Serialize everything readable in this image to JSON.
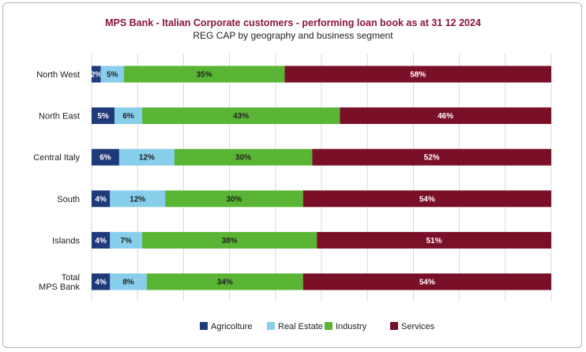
{
  "chart_data": {
    "type": "bar",
    "orientation": "horizontal",
    "stacked": true,
    "title": "MPS Bank - Italian Corporate customers - performing loan book as at 31 12 2024",
    "subtitle": "REG CAP by geography and business segment",
    "categories": [
      [
        "North West"
      ],
      [
        "North East"
      ],
      [
        "Central Italy"
      ],
      [
        "South"
      ],
      [
        "Islands"
      ],
      [
        "Total",
        "MPS Bank"
      ]
    ],
    "xlim": [
      0,
      100
    ],
    "grid": true,
    "legend_position": "bottom",
    "series": [
      {
        "name": "Agricolture",
        "color": "#1f3a7a",
        "label_color": "#ffffff",
        "values": [
          2,
          5,
          6,
          4,
          4,
          4
        ],
        "labels": [
          "2%",
          "5%",
          "6%",
          "4%",
          "4%",
          "4%"
        ]
      },
      {
        "name": "Real Estate",
        "color": "#87ceeb",
        "label_color": "#222222",
        "values": [
          5,
          6,
          12,
          12,
          7,
          8
        ],
        "labels": [
          "5%",
          "6%",
          "12%",
          "12%",
          "7%",
          "8%"
        ]
      },
      {
        "name": "Industry",
        "color": "#5ab534",
        "label_color": "#222222",
        "values": [
          35,
          43,
          30,
          30,
          38,
          34
        ],
        "labels": [
          "35%",
          "43%",
          "30%",
          "30%",
          "38%",
          "34%"
        ]
      },
      {
        "name": "Services",
        "color": "#7a0f28",
        "label_color": "#ffffff",
        "values": [
          58,
          46,
          52,
          54,
          51,
          54
        ],
        "labels": [
          "58%",
          "46%",
          "52%",
          "54%",
          "51%",
          "54%"
        ]
      }
    ]
  }
}
